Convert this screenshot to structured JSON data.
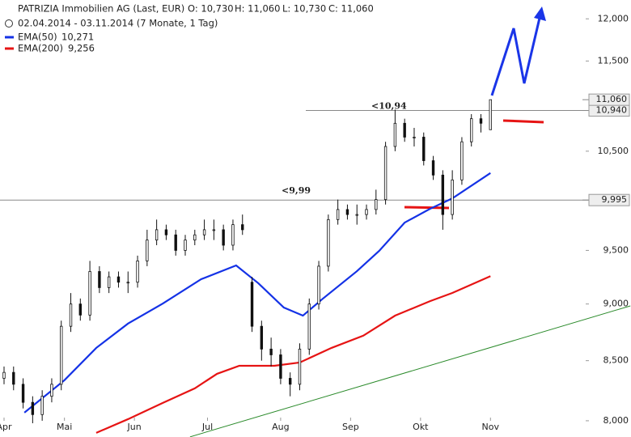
{
  "header": {
    "title": "PATRIZIA Immobilien AG (Last, EUR)",
    "ohlc": [
      "O: 10,730",
      "H: 11,060",
      "L: 10,730",
      "C: 11,060"
    ],
    "range": "02.04.2014 - 03.11.2014 (7 Monate, 1 Tag)"
  },
  "chart_data": {
    "type": "candlestick",
    "log_scale": true,
    "x": [
      0,
      3,
      6,
      9,
      12,
      15,
      18,
      21,
      24,
      27,
      30,
      33,
      36,
      39,
      42,
      45,
      48,
      51,
      54,
      57,
      60,
      63,
      66,
      69,
      72,
      75,
      78,
      81,
      84,
      87,
      90,
      93,
      96,
      99,
      102,
      105,
      108,
      111,
      114,
      117,
      120,
      123,
      126,
      129,
      132,
      135,
      138,
      141,
      144,
      147,
      150,
      153
    ],
    "open": [
      8350,
      8400,
      8300,
      8150,
      8050,
      8200,
      8300,
      8800,
      9000,
      8900,
      9300,
      9150,
      9250,
      9200,
      9200,
      9400,
      9600,
      9700,
      9650,
      9500,
      9600,
      9650,
      9700,
      9700,
      9550,
      9750,
      9200,
      8800,
      8600,
      8550,
      8350,
      8300,
      8600,
      9000,
      9350,
      9800,
      9900,
      9850,
      9850,
      9900,
      10000,
      10550,
      10800,
      10650,
      10650,
      10400,
      10250,
      9850,
      10200,
      10600,
      10850,
      10730
    ],
    "high": [
      8450,
      8450,
      8350,
      8200,
      8250,
      8350,
      8850,
      9100,
      9050,
      9400,
      9350,
      9300,
      9300,
      9300,
      9450,
      9700,
      9800,
      9750,
      9700,
      9650,
      9700,
      9800,
      9800,
      9750,
      9800,
      9850,
      9250,
      8850,
      8700,
      8600,
      8400,
      8650,
      9050,
      9400,
      9850,
      10000,
      9950,
      9950,
      9950,
      10100,
      10600,
      10950,
      10850,
      10750,
      10700,
      10450,
      10300,
      10300,
      10650,
      10900,
      10900,
      11060
    ],
    "low": [
      8300,
      8250,
      8100,
      7980,
      8000,
      8150,
      8250,
      8750,
      8850,
      8850,
      9100,
      9100,
      9150,
      9100,
      9150,
      9350,
      9550,
      9600,
      9450,
      9450,
      9550,
      9600,
      9600,
      9500,
      9500,
      9650,
      8750,
      8500,
      8450,
      8300,
      8200,
      8250,
      8550,
      8950,
      9300,
      9750,
      9800,
      9750,
      9800,
      9850,
      9950,
      10500,
      10600,
      10550,
      10350,
      10200,
      9700,
      9800,
      10150,
      10550,
      10700,
      10730
    ],
    "close": [
      8400,
      8300,
      8150,
      8050,
      8200,
      8300,
      8800,
      9000,
      8900,
      9300,
      9150,
      9250,
      9200,
      9200,
      9400,
      9600,
      9700,
      9650,
      9500,
      9600,
      9650,
      9700,
      9700,
      9550,
      9750,
      9700,
      8800,
      8600,
      8550,
      8350,
      8300,
      8600,
      9000,
      9350,
      9800,
      9900,
      9850,
      9850,
      9900,
      10000,
      10550,
      10800,
      10650,
      10650,
      10400,
      10250,
      9850,
      10200,
      10600,
      10850,
      10800,
      11060
    ],
    "series": [
      {
        "name": "EMA(50)",
        "legend_value": "10,271",
        "color": "#1432e6",
        "x": [
          6.4,
          19,
          29,
          39,
          50,
          62,
          73,
          80,
          88,
          94,
          100,
          111,
          118,
          126,
          134,
          141,
          153
        ],
        "values": [
          8066,
          8334,
          8610,
          8824,
          9005,
          9228,
          9357,
          9190,
          8968,
          8895,
          9042,
          9303,
          9496,
          9770,
          9907,
          10012,
          10271
        ]
      },
      {
        "name": "EMA(200)",
        "legend_value": "9,256",
        "color": "#e61414",
        "x": [
          29,
          39,
          50,
          60,
          67,
          74,
          85,
          93,
          103,
          113,
          123,
          134,
          141,
          153
        ],
        "values": [
          7903,
          8013,
          8146,
          8266,
          8388,
          8456,
          8456,
          8484,
          8610,
          8717,
          8895,
          9026,
          9101,
          9256
        ]
      }
    ],
    "trendline": {
      "color": "#2a8a2a",
      "x": [
        58.5,
        197
      ],
      "values": [
        7871,
        8983
      ]
    },
    "levels": [
      {
        "value": 10940,
        "label": "10,940"
      },
      {
        "value": 9995,
        "label": "9,995"
      }
    ],
    "last": {
      "value": 11060,
      "label": "11,060"
    },
    "annotations": [
      "<10,94",
      "<9,99"
    ],
    "xlim": [
      -1.27,
      197.2
    ],
    "ylim": [
      7870,
      12230
    ],
    "xticks": [
      {
        "value": 0,
        "label": "Apr"
      },
      {
        "value": 19,
        "label": "Mai"
      },
      {
        "value": 41,
        "label": "Jun"
      },
      {
        "value": 64,
        "label": "Jul"
      },
      {
        "value": 87,
        "label": "Aug"
      },
      {
        "value": 109,
        "label": "Sep"
      },
      {
        "value": 131,
        "label": "Okt"
      },
      {
        "value": 153,
        "label": "Nov"
      }
    ],
    "yticks": [
      {
        "value": 8000,
        "label": "8,000"
      },
      {
        "value": 8500,
        "label": "8,500"
      },
      {
        "value": 9000,
        "label": "9,000"
      },
      {
        "value": 9500,
        "label": "9,500"
      },
      {
        "value": 10500,
        "label": "10,500"
      },
      {
        "value": 11500,
        "label": "11,500"
      },
      {
        "value": 12000,
        "label": "12,000"
      }
    ]
  }
}
